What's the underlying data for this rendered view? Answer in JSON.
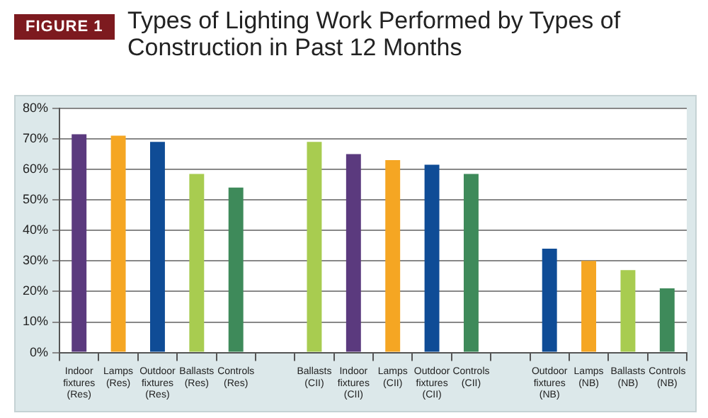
{
  "chart_data": {
    "type": "bar",
    "title": "Types of Lighting Work Performed by Types of Construction in Past 12 Months",
    "annotations": [
      "FIGURE 1"
    ],
    "categories": [
      "Indoor fixtures (Res)",
      "Lamps (Res)",
      "Outdoor fixtures (Res)",
      "Ballasts (Res)",
      "Controls (Res)",
      null,
      "Ballasts (CII)",
      "Indoor fixtures (CII)",
      "Lamps (CII)",
      "Outdoor fixtures (CII)",
      "Controls (CII)",
      null,
      "Outdoor fixtures (NB)",
      "Lamps (NB)",
      "Ballasts (NB)",
      "Controls (NB)"
    ],
    "values": [
      71.5,
      71,
      69,
      58.5,
      54,
      null,
      69,
      65,
      63,
      61.5,
      58.5,
      null,
      34,
      30,
      27,
      21
    ],
    "colors": [
      "#5b3a7e",
      "#f5a623",
      "#0f4c96",
      "#a8cc50",
      "#3e8a5a",
      "#ffffff",
      "#a8cc50",
      "#5b3a7e",
      "#f5a623",
      "#0f4c96",
      "#3e8a5a",
      "#ffffff",
      "#0f4c96",
      "#f5a623",
      "#a8cc50",
      "#3e8a5a"
    ],
    "ylim": [
      0,
      80
    ],
    "yticks": [
      {
        "value": 0,
        "label": "0%"
      },
      {
        "value": 10,
        "label": "10%"
      },
      {
        "value": 20,
        "label": "20%"
      },
      {
        "value": 30,
        "label": "30%"
      },
      {
        "value": 40,
        "label": "40%"
      },
      {
        "value": 50,
        "label": "50%"
      },
      {
        "value": 60,
        "label": "60%"
      },
      {
        "value": 70,
        "label": "70%"
      },
      {
        "value": 80,
        "label": "80%"
      }
    ],
    "grid": "y",
    "legend": false
  }
}
